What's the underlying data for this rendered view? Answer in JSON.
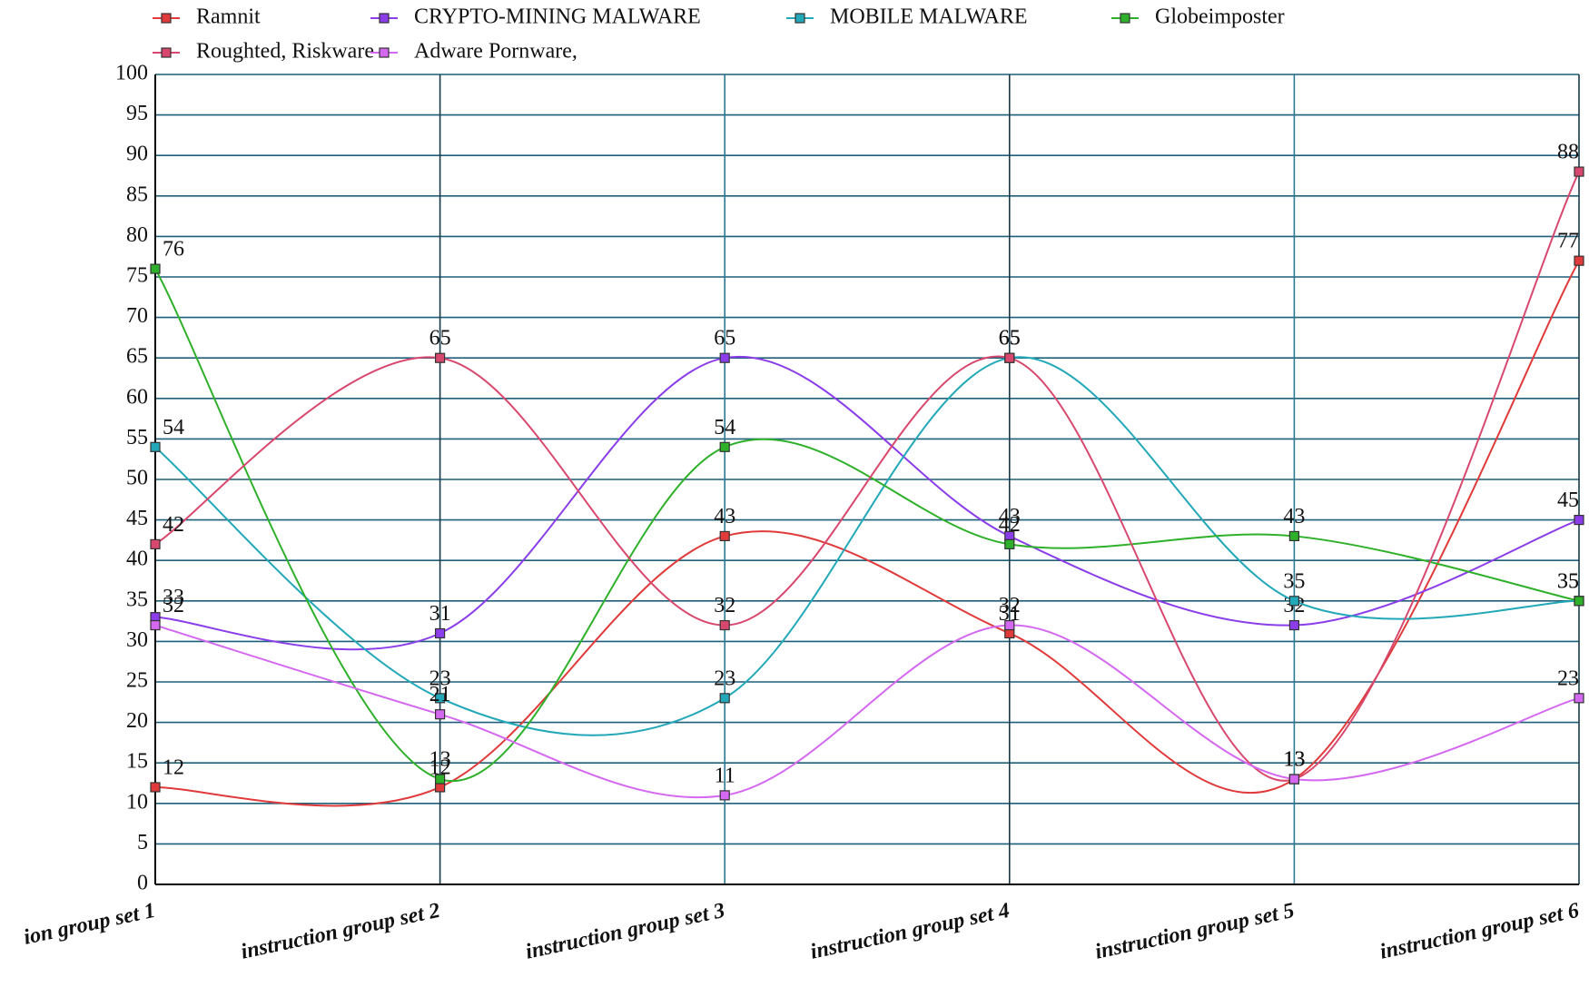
{
  "chart_data": {
    "type": "line",
    "smooth": true,
    "grid": true,
    "categories": [
      "ion group set 1",
      "instruction group set 2",
      "instruction group set 3",
      "instruction group set 4",
      "instruction group set 5",
      "instruction group set 6"
    ],
    "series": [
      {
        "name": "Ramnit",
        "color": "#e03a3a",
        "values": [
          12,
          12,
          43,
          31,
          13,
          77
        ]
      },
      {
        "name": "CRYPTO-MINING MALWARE",
        "color": "#8a3de8",
        "values": [
          33,
          31,
          65,
          43,
          32,
          45
        ]
      },
      {
        "name": "MOBILE MALWARE",
        "color": "#22a8b8",
        "values": [
          54,
          23,
          23,
          65,
          35,
          35
        ]
      },
      {
        "name": "Globeimposter",
        "color": "#2fb02a",
        "values": [
          76,
          13,
          54,
          42,
          43,
          35
        ]
      },
      {
        "name": "Roughted, Riskware",
        "color": "#d8486e",
        "values": [
          42,
          65,
          32,
          65,
          13,
          88
        ]
      },
      {
        "name": "Adware Pornware,",
        "color": "#d468f0",
        "values": [
          32,
          21,
          11,
          32,
          13,
          23
        ]
      }
    ],
    "ylim": [
      0,
      100
    ],
    "yticks": [
      0,
      5,
      10,
      15,
      20,
      25,
      30,
      35,
      40,
      45,
      50,
      55,
      60,
      65,
      70,
      75,
      80,
      85,
      90,
      95,
      100
    ]
  }
}
